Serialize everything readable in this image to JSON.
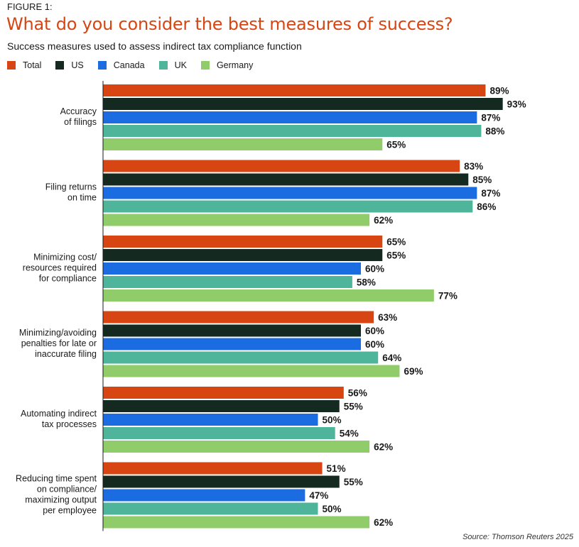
{
  "figure_label": "FIGURE 1:",
  "title": "What do you consider the best measures of success?",
  "subtitle": "Success measures used to assess indirect tax compliance function",
  "source": "Source: Thomson Reuters 2025",
  "colors": {
    "Total": "#d64512",
    "US": "#14291f",
    "Canada": "#1a6ce0",
    "UK": "#4fb59a",
    "Germany": "#90cc6a"
  },
  "chart_data": {
    "type": "bar",
    "orientation": "horizontal",
    "xlim": [
      0,
      100
    ],
    "value_suffix": "%",
    "legend_position": "top-left",
    "grid": false,
    "categories": [
      "Accuracy\nof filings",
      "Filing returns\non time",
      "Minimizing cost/\nresources required\nfor compliance",
      "Minimizing/avoiding\npenalties for late or\ninaccurate filing",
      "Automating indirect\ntax processes",
      "Reducing time spent\non compliance/\nmaximizing output\nper employee"
    ],
    "series": [
      {
        "name": "Total",
        "values": [
          89,
          83,
          65,
          63,
          56,
          51
        ]
      },
      {
        "name": "US",
        "values": [
          93,
          85,
          65,
          60,
          55,
          55
        ]
      },
      {
        "name": "Canada",
        "values": [
          87,
          87,
          60,
          60,
          50,
          47
        ]
      },
      {
        "name": "UK",
        "values": [
          88,
          86,
          58,
          64,
          54,
          50
        ]
      },
      {
        "name": "Germany",
        "values": [
          65,
          62,
          77,
          69,
          62,
          62
        ]
      }
    ]
  }
}
